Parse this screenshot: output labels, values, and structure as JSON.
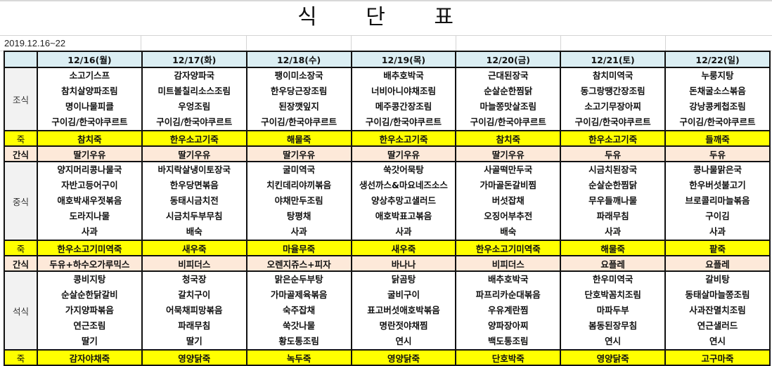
{
  "title": "식 단 표",
  "date_range": "2019.12.16~22",
  "colors": {
    "header": "#dbeef3",
    "porridge": "#ffff00",
    "snack": "#fde9d9",
    "label": "#f2f2f2"
  },
  "days": [
    "12/16(월)",
    "12/17(화)",
    "12/18(수)",
    "12/19(목)",
    "12/20(금)",
    "12/21(토)",
    "12/22(일)"
  ],
  "rows": [
    {
      "type": "meal",
      "label": "조식",
      "cells": [
        [
          "소고기스프",
          "참치살양파조림",
          "명이나물피클",
          "구이김/한국야쿠르트"
        ],
        [
          "감자양파국",
          "미트볼칠리소스조림",
          "우엉조림",
          "구이김/한국야쿠르트"
        ],
        [
          "팽이미소장국",
          "한우당근장조림",
          "된장깻잎지",
          "구이김/한국야쿠르트"
        ],
        [
          "배추호박국",
          "너비아니야채조림",
          "메주콩간장조림",
          "구이김/한국야쿠르트"
        ],
        [
          "근대된장국",
          "순살순한찜닭",
          "마늘쫑맛살조림",
          "구이김/한국야쿠르트"
        ],
        [
          "참치미역국",
          "동그랑땡간장조림",
          "소고기무장아찌",
          "구이김/한국야쿠르트"
        ],
        [
          "누룽지탕",
          "돈채굴소스볶음",
          "강낭콩케첩조림",
          "구이김/한국야쿠르트"
        ]
      ]
    },
    {
      "type": "juk",
      "label": "죽",
      "cells": [
        "참치죽",
        "한우소고기죽",
        "해물죽",
        "한우소고기죽",
        "참치죽",
        "한우소고기죽",
        "들깨죽"
      ]
    },
    {
      "type": "snack",
      "label": "간식",
      "cells": [
        "딸기우유",
        "딸기우유",
        "딸기우유",
        "딸기우유",
        "딸기우유",
        "두유",
        "두유"
      ]
    },
    {
      "type": "meal",
      "label": "중식",
      "cells": [
        [
          "양지머리콩나물국",
          "자반고등어구이",
          "애호박새우젓볶음",
          "도라지나물",
          "사과"
        ],
        [
          "바지락살냉이토장국",
          "한우당면볶음",
          "동태시금치전",
          "시금치두부무침",
          "배숙"
        ],
        [
          "굴미역국",
          "치킨데리야끼볶음",
          "야채만두조림",
          "탕평채",
          "사과"
        ],
        [
          "쑥갓어묵탕",
          "생선까스&마요네즈소스",
          "양상추망고샐러드",
          "애호박표고볶음",
          "사과"
        ],
        [
          "사골떡만두국",
          "가마골돈갈비찜",
          "버섯잡채",
          "오징어부추전",
          "배숙"
        ],
        [
          "시금치된장국",
          "순살순한찜닭",
          "무우들깨나물",
          "파래무침",
          "사과"
        ],
        [
          "콩나물맑은국",
          "한우버섯불고기",
          "브로콜리마늘볶음",
          "구이김",
          "사과"
        ]
      ]
    },
    {
      "type": "juk",
      "label": "죽",
      "cells": [
        "한우소고기미역죽",
        "새우죽",
        "마율무죽",
        "새우죽",
        "한우소고기미역죽",
        "해물죽",
        "팥죽"
      ]
    },
    {
      "type": "snack",
      "label": "간식",
      "cells": [
        "두유+하수오가루믹스",
        "비피더스",
        "오렌지쥬스+피자",
        "바나나",
        "비피더스",
        "요플레",
        "요플레"
      ]
    },
    {
      "type": "meal",
      "label": "석식",
      "cells": [
        [
          "콩비지탕",
          "순살순한닭갈비",
          "가지양파볶음",
          "연근조림",
          "딸기"
        ],
        [
          "청국장",
          "갈치구이",
          "어묵채피망볶음",
          "파래무침",
          "딸기"
        ],
        [
          "맑은순두부탕",
          "가마골제육볶음",
          "숙주잡채",
          "쑥갓나물",
          "황도통조림"
        ],
        [
          "닭곰탕",
          "굴비구이",
          "표고버섯애호박볶음",
          "명란젓야채찜",
          "연시"
        ],
        [
          "배추호박국",
          "파프리카순대볶음",
          "우유계란찜",
          "양파장아찌",
          "백도통조림"
        ],
        [
          "한우미역국",
          "단호박꼼치조림",
          "마파두부",
          "봄동된장무침",
          "연시"
        ],
        [
          "갈비탕",
          "동태살마늘쫑조림",
          "사과잔멸치조림",
          "연근샐러드",
          "연시"
        ]
      ]
    },
    {
      "type": "juk",
      "label": "죽",
      "cells": [
        "감자야채죽",
        "영양닭죽",
        "녹두죽",
        "영양닭죽",
        "단호박죽",
        "영양닭죽",
        "고구마죽"
      ]
    }
  ]
}
